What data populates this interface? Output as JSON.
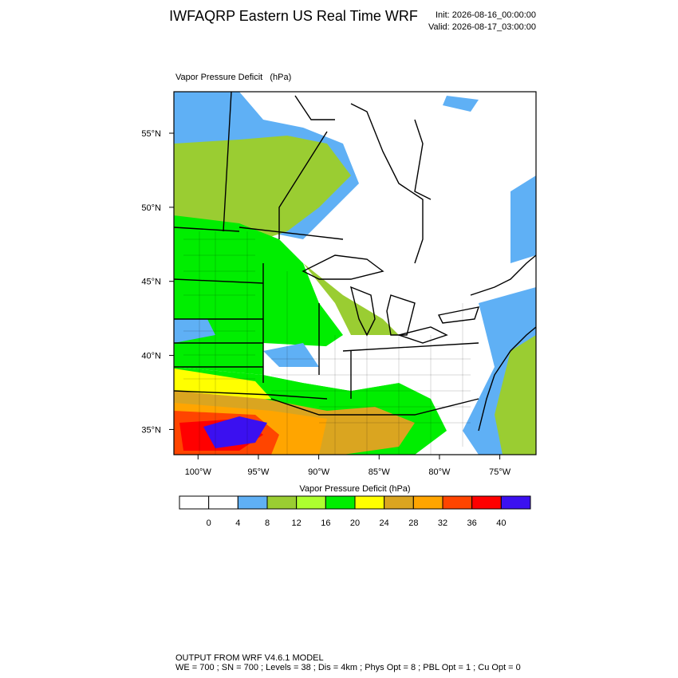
{
  "header": {
    "title": "IWFAQRP Eastern US Real Time WRF",
    "init": "Init: 2026-08-16_00:00:00",
    "valid": "Valid: 2026-08-17_03:00:00"
  },
  "chart_data": {
    "type": "map",
    "title": "Vapor Pressure Deficit   (hPa)",
    "xlim": [
      -102,
      -72
    ],
    "ylim": [
      33.3,
      57.8
    ],
    "xticks": [
      {
        "value": -100,
        "label": "100°W"
      },
      {
        "value": -95,
        "label": "95°W"
      },
      {
        "value": -90,
        "label": "90°W"
      },
      {
        "value": -85,
        "label": "85°W"
      },
      {
        "value": -80,
        "label": "80°W"
      },
      {
        "value": -75,
        "label": "75°W"
      }
    ],
    "yticks": [
      {
        "value": 55,
        "label": "55°N"
      },
      {
        "value": 50,
        "label": "50°N"
      },
      {
        "value": 45,
        "label": "45°N"
      },
      {
        "value": 40,
        "label": "40°N"
      },
      {
        "value": 35,
        "label": "35°N"
      }
    ],
    "colorbar": {
      "title": "Vapor Pressure Deficit  (hPa)",
      "levels": [
        0,
        4,
        8,
        12,
        16,
        20,
        24,
        28,
        32,
        36,
        40
      ],
      "colors": [
        "#ffffff",
        "#ffffff",
        "#5fb0f5",
        "#9acd32",
        "#adff2f",
        "#00ee00",
        "#ffff00",
        "#daa520",
        "#ffa500",
        "#ff4500",
        "#ff0000",
        "#3b10f0"
      ]
    }
  },
  "footer": {
    "line1": "OUTPUT FROM WRF V4.6.1 MODEL",
    "line2": "WE = 700 ; SN = 700 ; Levels = 38 ; Dis = 4km ; Phys Opt = 8 ; PBL Opt = 1 ; Cu Opt = 0"
  }
}
